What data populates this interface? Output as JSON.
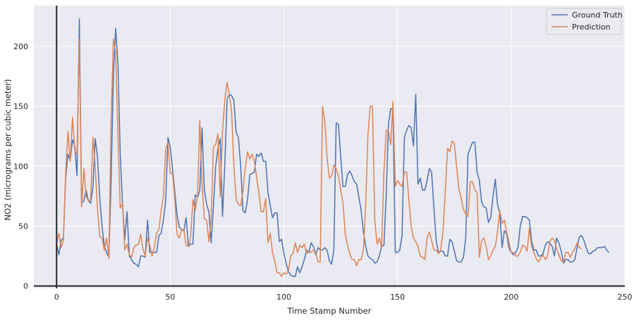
{
  "chart_data": {
    "type": "line",
    "title": "",
    "xlabel": "Time Stamp Number",
    "ylabel": "NO2 (micrograms per cubic meter)",
    "xlim": [
      -10,
      250
    ],
    "ylim": [
      -2,
      234
    ],
    "x_ticks": [
      0,
      50,
      100,
      150,
      200,
      250
    ],
    "y_ticks": [
      0,
      50,
      100,
      150,
      200
    ],
    "grid": true,
    "legend_position": "top-right",
    "colors": {
      "plot_bg": "#eaeaf2",
      "grid": "#ffffff",
      "axis_line": "#262626"
    },
    "series": [
      {
        "name": "Ground Truth",
        "color": "#4c72b0",
        "values": [
          35,
          26,
          38,
          40,
          90,
          110,
          105,
          122,
          117,
          92,
          223,
          69,
          71,
          80,
          71,
          69,
          83,
          123,
          108,
          73,
          50,
          33,
          28,
          24,
          90,
          175,
          215,
          185,
          110,
          69,
          39,
          62,
          25,
          22,
          19,
          18,
          16,
          25,
          25,
          24,
          55,
          28,
          28,
          28,
          28,
          42,
          44,
          55,
          71,
          124,
          116,
          98,
          79,
          59,
          49,
          47,
          46,
          57,
          33,
          35,
          35,
          76,
          74,
          80,
          132,
          80,
          68,
          62,
          36,
          66,
          100,
          115,
          123,
          58,
          100,
          156,
          160,
          159,
          155,
          128,
          124,
          100,
          63,
          61,
          72,
          93,
          94,
          95,
          110,
          108,
          111,
          104,
          104,
          78,
          67,
          57,
          61,
          61,
          37,
          39,
          27,
          19,
          12,
          9,
          8,
          8,
          16,
          11,
          16,
          22,
          30,
          28,
          36,
          33,
          26,
          32,
          30,
          30,
          32,
          30,
          21,
          18,
          30,
          136,
          135,
          108,
          83,
          83,
          93,
          96,
          92,
          87,
          85,
          74,
          63,
          45,
          33,
          25,
          23,
          22,
          19,
          20,
          25,
          33,
          34,
          75,
          135,
          148,
          148,
          28,
          28,
          30,
          42,
          124,
          130,
          134,
          132,
          117,
          160,
          85,
          90,
          80,
          80,
          88,
          98,
          95,
          65,
          38,
          28,
          29,
          29,
          25,
          25,
          39,
          37,
          29,
          21,
          20,
          20,
          24,
          40,
          110,
          115,
          120,
          120,
          95,
          88,
          70,
          66,
          65,
          53,
          57,
          75,
          89,
          68,
          61,
          32,
          46,
          44,
          32,
          28,
          26,
          28,
          32,
          50,
          58,
          58,
          57,
          55,
          37,
          30,
          30,
          25,
          25,
          27,
          34,
          37,
          36,
          33,
          25,
          40,
          36,
          29,
          19,
          22,
          22,
          20,
          20,
          22,
          32,
          41,
          42,
          38,
          32,
          27,
          27,
          29,
          30,
          32,
          32,
          32,
          33,
          30,
          28
        ]
      },
      {
        "name": "Prediction",
        "color": "#dd8452",
        "values": [
          35,
          44,
          32,
          38,
          94,
          129,
          104,
          141,
          113,
          110,
          206,
          66,
          98,
          75,
          71,
          72,
          124,
          100,
          65,
          41,
          40,
          30,
          40,
          23,
          140,
          206,
          195,
          125,
          65,
          69,
          30,
          35,
          26,
          24,
          32,
          34,
          35,
          43,
          31,
          25,
          40,
          34,
          25,
          32,
          44,
          47,
          63,
          74,
          114,
          120,
          94,
          94,
          73,
          43,
          40,
          47,
          47,
          34,
          33,
          42,
          72,
          63,
          75,
          138,
          85,
          56,
          55,
          37,
          56,
          116,
          118,
          127,
          74,
          129,
          155,
          170,
          160,
          146,
          101,
          72,
          68,
          67,
          79,
          98,
          112,
          106,
          110,
          104,
          91,
          78,
          62,
          62,
          73,
          36,
          44,
          28,
          21,
          11,
          11,
          8,
          11,
          10,
          13,
          25,
          27,
          36,
          28,
          34,
          32,
          35,
          27,
          29,
          28,
          30,
          28,
          20,
          20,
          150,
          138,
          107,
          90,
          92,
          101,
          98,
          92,
          80,
          70,
          43,
          34,
          27,
          22,
          22,
          17,
          22,
          22,
          30,
          69,
          127,
          150,
          150,
          54,
          35,
          40,
          32,
          95,
          130,
          130,
          118,
          154,
          83,
          88,
          85,
          83,
          95,
          95,
          72,
          50,
          40,
          37,
          33,
          25,
          24,
          22,
          40,
          45,
          38,
          30,
          30,
          27,
          30,
          46,
          79,
          115,
          112,
          121,
          119,
          99,
          81,
          73,
          64,
          60,
          58,
          87,
          87,
          80,
          78,
          24,
          38,
          40,
          33,
          22,
          25,
          30,
          33,
          45,
          63,
          52,
          55,
          45,
          37,
          28,
          28,
          25,
          25,
          28,
          34,
          33,
          29,
          48,
          33,
          28,
          23,
          20,
          23,
          26,
          22,
          25,
          37,
          40,
          38,
          31,
          26,
          21,
          20,
          28,
          28,
          24,
          28,
          31,
          36,
          32,
          31
        ]
      }
    ]
  }
}
